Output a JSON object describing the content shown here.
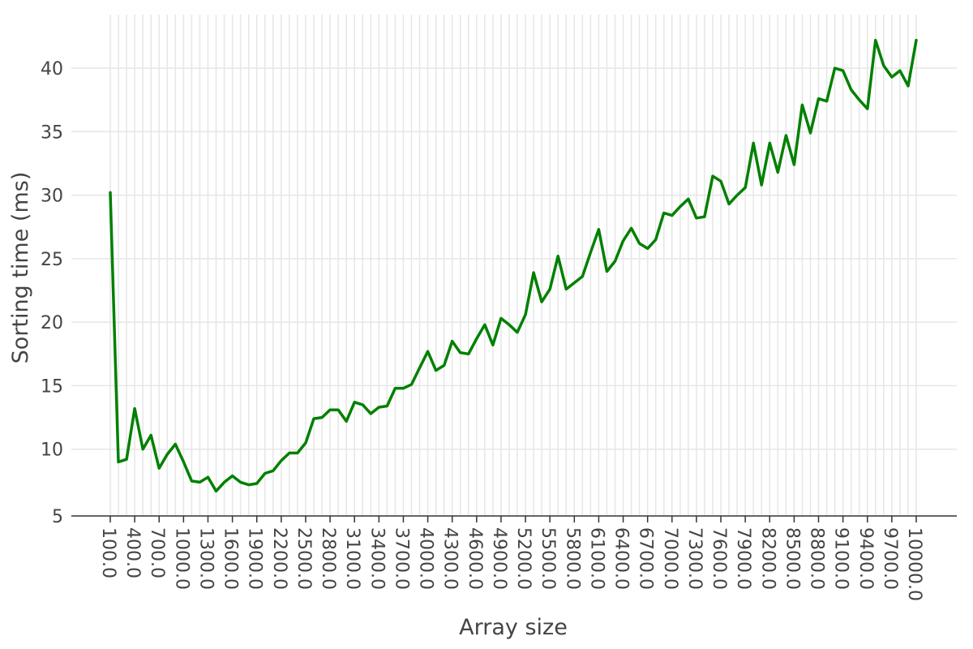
{
  "chart_data": {
    "type": "line",
    "xlabel": "Array size",
    "ylabel": "Sorting time (ms)",
    "x": [
      100.0,
      200.0,
      300.0,
      400.0,
      500.0,
      600.0,
      700.0,
      800.0,
      900.0,
      1000.0,
      1100.0,
      1200.0,
      1300.0,
      1400.0,
      1500.0,
      1600.0,
      1700.0,
      1800.0,
      1900.0,
      2000.0,
      2100.0,
      2200.0,
      2300.0,
      2400.0,
      2500.0,
      2600.0,
      2700.0,
      2800.0,
      2900.0,
      3000.0,
      3100.0,
      3200.0,
      3300.0,
      3400.0,
      3500.0,
      3600.0,
      3700.0,
      3800.0,
      3900.0,
      4000.0,
      4100.0,
      4200.0,
      4300.0,
      4400.0,
      4500.0,
      4600.0,
      4700.0,
      4800.0,
      4900.0,
      5000.0,
      5100.0,
      5200.0,
      5300.0,
      5400.0,
      5500.0,
      5600.0,
      5700.0,
      5800.0,
      5900.0,
      6000.0,
      6100.0,
      6200.0,
      6300.0,
      6400.0,
      6500.0,
      6600.0,
      6700.0,
      6800.0,
      6900.0,
      7000.0,
      7100.0,
      7200.0,
      7300.0,
      7400.0,
      7500.0,
      7600.0,
      7700.0,
      7800.0,
      7900.0,
      8000.0,
      8100.0,
      8200.0,
      8300.0,
      8400.0,
      8500.0,
      8600.0,
      8700.0,
      8800.0,
      8900.0,
      9000.0,
      9100.0,
      9200.0,
      9300.0,
      9400.0,
      9500.0,
      9600.0,
      9700.0,
      9800.0,
      9900.0,
      10000.0
    ],
    "x_tick_labels": [
      "100.0",
      "400.0",
      "700.0",
      "1000.0",
      "1300.0",
      "1600.0",
      "1900.0",
      "2200.0",
      "2500.0",
      "2800.0",
      "3100.0",
      "3400.0",
      "3700.0",
      "4000.0",
      "4300.0",
      "4600.0",
      "4900.0",
      "5200.0",
      "5500.0",
      "5800.0",
      "6100.0",
      "6400.0",
      "6700.0",
      "7000.0",
      "7300.0",
      "7600.0",
      "7900.0",
      "8200.0",
      "8500.0",
      "8800.0",
      "9100.0",
      "9400.0",
      "9700.0",
      "10000.0"
    ],
    "series": [
      {
        "color": "#008000",
        "values": [
          30.2,
          9.0,
          9.2,
          13.2,
          10.0,
          11.1,
          8.5,
          9.6,
          10.4,
          9.0,
          7.5,
          7.4,
          7.8,
          6.7,
          7.4,
          7.9,
          7.4,
          7.2,
          7.3,
          8.1,
          8.3,
          9.1,
          9.7,
          9.7,
          10.5,
          12.4,
          12.5,
          13.1,
          13.1,
          12.2,
          13.7,
          13.5,
          12.8,
          13.3,
          13.4,
          14.8,
          14.8,
          15.1,
          16.4,
          17.7,
          16.2,
          16.6,
          18.5,
          17.6,
          17.5,
          18.7,
          19.8,
          18.2,
          20.3,
          19.8,
          19.2,
          20.6,
          23.9,
          21.6,
          22.6,
          25.2,
          22.6,
          23.1,
          23.6,
          25.5,
          27.3,
          24.0,
          24.8,
          26.4,
          27.4,
          26.2,
          25.8,
          26.5,
          28.6,
          28.4,
          29.1,
          29.7,
          28.2,
          28.3,
          31.5,
          31.1,
          29.3,
          30.0,
          30.6,
          34.1,
          30.8,
          34.1,
          31.8,
          34.7,
          32.4,
          37.1,
          34.9,
          37.6,
          37.4,
          40.0,
          39.8,
          38.3,
          37.5,
          36.8,
          42.2,
          40.2,
          39.3,
          39.8,
          38.6,
          42.2
        ]
      }
    ],
    "yticks": [
      5,
      10,
      15,
      20,
      25,
      30,
      35,
      40
    ],
    "ylim": [
      5,
      44
    ],
    "grid": true,
    "colors": {
      "line": "#008000",
      "grid": "#e6e6e6",
      "axis": "#333333",
      "text": "#444444"
    }
  }
}
